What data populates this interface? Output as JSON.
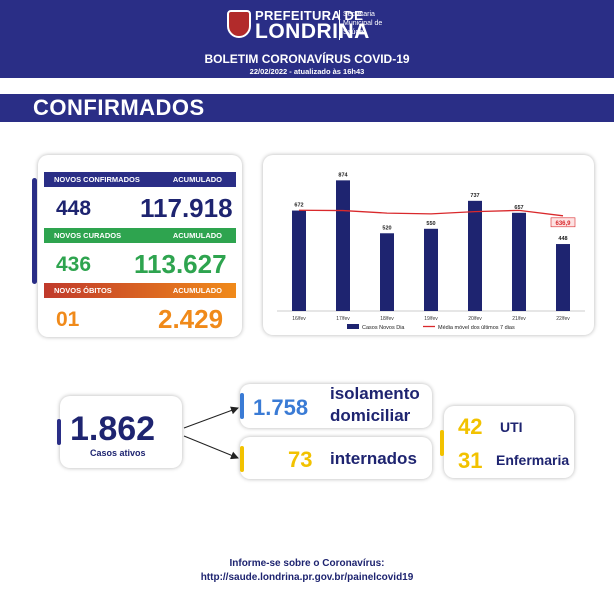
{
  "header": {
    "pref": "PREFEITURA DE",
    "city": "LONDRINA",
    "secretaria": "Secretaria Municipal de Saúde",
    "title": "BOLETIM CORONAVÍRUS COVID-19",
    "date": "22/02/2022 - atualizado às 16h43"
  },
  "section_title": "CONFIRMADOS",
  "stats": {
    "confirmados": {
      "label": "NOVOS CONFIRMADOS",
      "acc_label": "ACUMULADO",
      "new": "448",
      "acc": "117.918",
      "color": "#2a2e86"
    },
    "curados": {
      "label": "NOVOS CURADOS",
      "acc_label": "ACUMULADO",
      "new": "436",
      "acc": "113.627",
      "color": "#2ea44f"
    },
    "obitos": {
      "label": "NOVOS ÓBITOS",
      "acc_label": "ACUMULADO",
      "new": "01",
      "acc": "2.429",
      "color": "#f08a1a"
    }
  },
  "chart_data": {
    "type": "bar",
    "categories": [
      "16/fev",
      "17/fev",
      "18/fev",
      "19/fev",
      "20/fev",
      "21/fev",
      "22/fev"
    ],
    "series": [
      {
        "name": "Casos Novos Dia",
        "values": [
          672,
          874,
          520,
          550,
          737,
          657,
          448
        ]
      },
      {
        "name": "Média móvel dos últimos 7 dias",
        "values": [
          674,
          672,
          655,
          650,
          665,
          673,
          636.9
        ]
      }
    ],
    "value_labels": [
      "672",
      "874",
      "520",
      "550",
      "737",
      "657",
      "448"
    ],
    "last_avg_label": "636,9",
    "ylim": [
      0,
      950
    ],
    "bar_color": "#1e2470",
    "line_color": "#d9292c"
  },
  "ativos": {
    "value": "1.862",
    "label": "Casos ativos"
  },
  "isolamento": {
    "value": "1.758",
    "label1": "isolamento",
    "label2": "domiciliar"
  },
  "internados": {
    "value": "73",
    "label": "internados"
  },
  "uti": {
    "value": "42",
    "label": "UTI"
  },
  "enfermaria": {
    "value": "31",
    "label": "Enfermaria"
  },
  "footer": {
    "line1": "Informe-se sobre o Coronavírus:",
    "line2": "http://saude.londrina.pr.gov.br/painelcovid19"
  },
  "colors": {
    "navy": "#2a2e86",
    "yellow": "#f2c200",
    "blue_pill": "#3a7bd5"
  }
}
